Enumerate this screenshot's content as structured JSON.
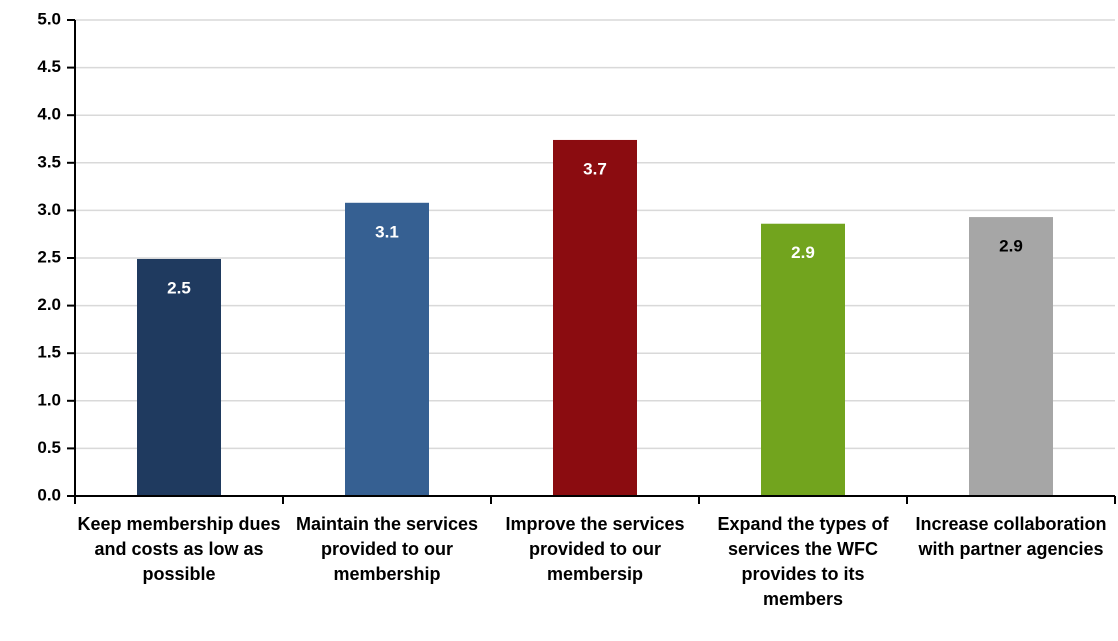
{
  "chart_data": {
    "type": "bar",
    "categories": [
      "Keep membership dues and costs as low as possible",
      "Maintain the services provided to our membership",
      "Improve the services provided to our membersip",
      "Expand the types of services the WFC provides to its members",
      "Increase collaboration with partner agencies"
    ],
    "values": [
      2.49,
      3.08,
      3.74,
      2.86,
      2.93
    ],
    "value_labels": [
      "2.5",
      "3.1",
      "3.7",
      "2.9",
      "2.9"
    ],
    "colors": [
      "#1f3a5f",
      "#366092",
      "#8b0c10",
      "#72a41e",
      "#a6a6a6"
    ],
    "label_colors": [
      "#ffffff",
      "#ffffff",
      "#ffffff",
      "#ffffff",
      "#000000"
    ],
    "ylim": [
      0,
      5
    ],
    "yticks": [
      {
        "value": 0,
        "label": "0.0"
      },
      0.5,
      {
        "value": 1,
        "label": "1.0"
      },
      1.5,
      {
        "value": 2,
        "label": "2.0"
      },
      2.5,
      {
        "value": 3,
        "label": "3.0"
      },
      3.5,
      {
        "value": 4,
        "label": "4.0"
      },
      4.5,
      {
        "value": 5,
        "label": "5.0"
      }
    ],
    "grid": true
  }
}
